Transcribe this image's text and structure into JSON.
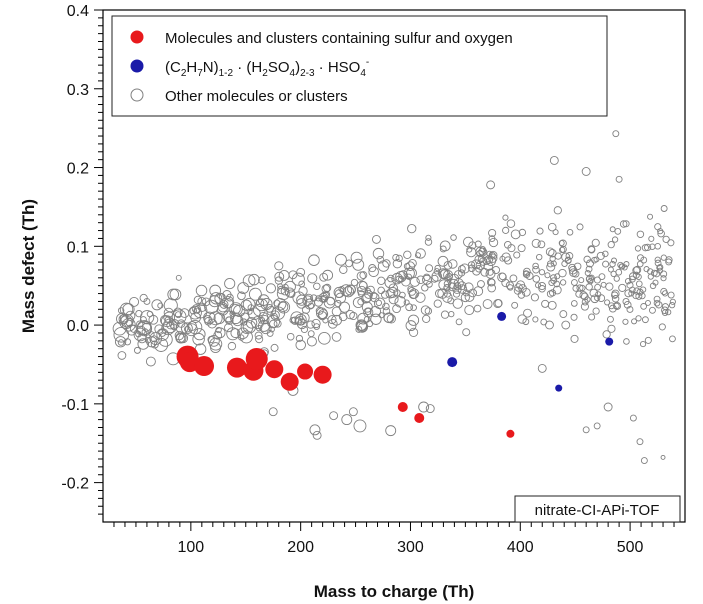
{
  "chart_data": {
    "type": "scatter",
    "xlabel": "Mass to charge (Th)",
    "ylabel": "Mass defect (Th)",
    "xlim": [
      20,
      550
    ],
    "ylim": [
      -0.25,
      0.4
    ],
    "x_ticks": [
      100,
      200,
      300,
      400,
      500
    ],
    "y_ticks": [
      -0.2,
      -0.1,
      0.0,
      0.1,
      0.2,
      0.3,
      0.4
    ],
    "y_tick_labels": [
      "-0.2",
      "-0.1",
      "0.0",
      "0.1",
      "0.2",
      "0.3",
      "0.4"
    ],
    "grid": false,
    "legend_position": "top-left",
    "annotation": "nitrate-CI-APi-TOF",
    "colors": {
      "sulfur_oxygen": "#e8191c",
      "amine_sulfate": "#1a1aa8",
      "other": "#808080"
    },
    "series": [
      {
        "name": "Molecules and clusters containing sulfur and oxygen",
        "legend_label": {
          "main": "Molecules and clusters containing sulfur and oxygen"
        },
        "marker": "filled-circle",
        "points": [
          {
            "x": 97,
            "y": -0.04,
            "s": 11
          },
          {
            "x": 99,
            "y": -0.047,
            "s": 10
          },
          {
            "x": 112,
            "y": -0.052,
            "s": 10
          },
          {
            "x": 142,
            "y": -0.054,
            "s": 10
          },
          {
            "x": 157,
            "y": -0.058,
            "s": 10
          },
          {
            "x": 160,
            "y": -0.043,
            "s": 11
          },
          {
            "x": 176,
            "y": -0.056,
            "s": 9
          },
          {
            "x": 190,
            "y": -0.072,
            "s": 9
          },
          {
            "x": 204,
            "y": -0.059,
            "s": 8
          },
          {
            "x": 220,
            "y": -0.063,
            "s": 9
          },
          {
            "x": 293,
            "y": -0.104,
            "s": 5
          },
          {
            "x": 308,
            "y": -0.118,
            "s": 5
          },
          {
            "x": 391,
            "y": -0.138,
            "s": 4
          }
        ]
      },
      {
        "name": "(C2H7N)1-2 · (H2SO4)2-3 · HSO4-",
        "legend_label": {
          "open": "(C",
          "s1": "2",
          "t1": "H",
          "s2": "7",
          "t2": "N)",
          "s3": "1-2",
          "t3": " · (H",
          "s4": "2",
          "t4": "SO",
          "s5": "4",
          "t5": ")",
          "s6": "2-3",
          "t6": " · HSO",
          "s7": "4",
          "sup": "-"
        },
        "marker": "filled-circle",
        "points": [
          {
            "x": 338,
            "y": -0.047,
            "s": 5
          },
          {
            "x": 383,
            "y": 0.011,
            "s": 4.5
          },
          {
            "x": 435,
            "y": -0.08,
            "s": 3.5
          },
          {
            "x": 481,
            "y": -0.021,
            "s": 4
          }
        ]
      },
      {
        "name": "Other molecules or clusters",
        "legend_label": {
          "main": "Other molecules or clusters"
        },
        "marker": "open-circle",
        "generated": {
          "count": 700,
          "x_range": [
            35,
            540
          ],
          "trend_anchors": [
            [
              35,
              -0.005
            ],
            [
              100,
              0.0
            ],
            [
              200,
              0.02
            ],
            [
              300,
              0.05
            ],
            [
              400,
              0.075
            ],
            [
              500,
              0.06
            ],
            [
              540,
              0.05
            ]
          ],
          "spread_y": 0.045,
          "size_range_px": [
            2.5,
            7.5
          ]
        },
        "points": [
          {
            "x": 487,
            "y": 0.243,
            "s": 3
          },
          {
            "x": 431,
            "y": 0.209,
            "s": 4
          },
          {
            "x": 460,
            "y": 0.195,
            "s": 4
          },
          {
            "x": 490,
            "y": 0.185,
            "s": 3
          },
          {
            "x": 373,
            "y": 0.178,
            "s": 4
          },
          {
            "x": 531,
            "y": 0.148,
            "s": 3
          },
          {
            "x": 509,
            "y": -0.148,
            "s": 3
          },
          {
            "x": 513,
            "y": -0.172,
            "s": 3
          },
          {
            "x": 530,
            "y": -0.168,
            "s": 2
          },
          {
            "x": 460,
            "y": -0.133,
            "s": 3
          },
          {
            "x": 470,
            "y": -0.128,
            "s": 3
          },
          {
            "x": 282,
            "y": -0.134,
            "s": 5
          },
          {
            "x": 254,
            "y": -0.128,
            "s": 6
          },
          {
            "x": 213,
            "y": -0.133,
            "s": 5
          },
          {
            "x": 215,
            "y": -0.14,
            "s": 4
          },
          {
            "x": 242,
            "y": -0.12,
            "s": 5
          },
          {
            "x": 312,
            "y": -0.104,
            "s": 5
          },
          {
            "x": 318,
            "y": -0.106,
            "s": 4
          },
          {
            "x": 248,
            "y": -0.11,
            "s": 4
          },
          {
            "x": 230,
            "y": -0.115,
            "s": 4
          },
          {
            "x": 175,
            "y": -0.11,
            "s": 4
          },
          {
            "x": 193,
            "y": -0.083,
            "s": 5
          },
          {
            "x": 185,
            "y": 0.063,
            "s": 5
          },
          {
            "x": 200,
            "y": 0.067,
            "s": 4
          },
          {
            "x": 89,
            "y": 0.06,
            "s": 2.5
          },
          {
            "x": 60,
            "y": 0.03,
            "s": 3
          },
          {
            "x": 110,
            "y": 0.03,
            "s": 4
          },
          {
            "x": 480,
            "y": -0.104,
            "s": 4
          },
          {
            "x": 503,
            "y": -0.118,
            "s": 3
          },
          {
            "x": 420,
            "y": -0.055,
            "s": 4
          }
        ]
      }
    ]
  }
}
